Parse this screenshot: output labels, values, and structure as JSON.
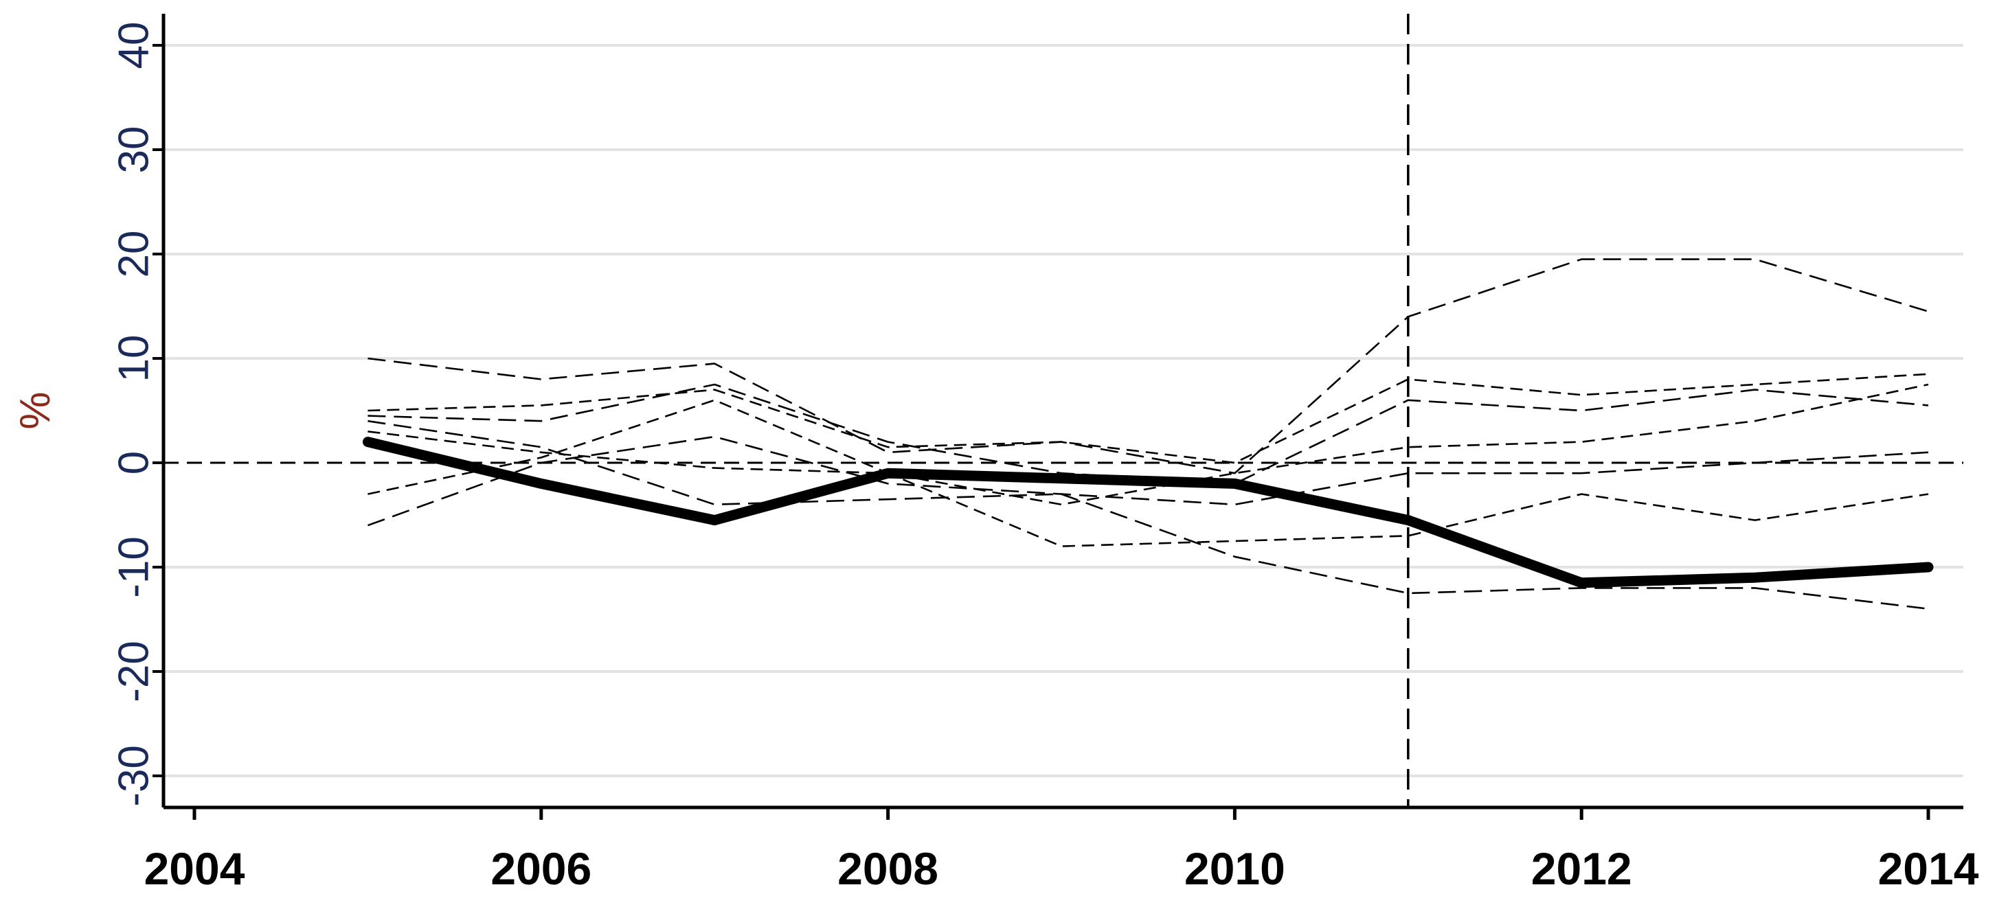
{
  "chart_data": {
    "type": "line",
    "title": "",
    "xlabel": "",
    "ylabel": "%",
    "xlim": [
      2004,
      2014
    ],
    "ylim": [
      -33,
      42
    ],
    "x_ticks": [
      2004,
      2006,
      2008,
      2010,
      2012,
      2014
    ],
    "y_ticks": [
      -30,
      -20,
      -10,
      0,
      10,
      20,
      30,
      40
    ],
    "grid": "horizontal",
    "reference_lines": {
      "horizontal_y": 0,
      "vertical_x": 2011
    },
    "x": [
      2005,
      2006,
      2007,
      2008,
      2009,
      2010,
      2011,
      2012,
      2013,
      2014
    ],
    "series": [
      {
        "style": "solid-bold",
        "values": [
          2,
          -2,
          -5.5,
          -1,
          -1.5,
          -2,
          -5.5,
          -11.5,
          -11,
          -10
        ]
      },
      {
        "style": "dashed",
        "values": [
          10,
          8,
          9.5,
          1,
          2,
          -1,
          14,
          19.5,
          19.5,
          14.5
        ]
      },
      {
        "style": "dashed",
        "values": [
          5,
          5.5,
          7,
          1.5,
          2,
          0,
          8,
          6.5,
          7.5,
          8.5
        ]
      },
      {
        "style": "dashed",
        "values": [
          4.5,
          4,
          7.5,
          2,
          -1,
          -2,
          6,
          5,
          7,
          5.5
        ]
      },
      {
        "style": "dashed",
        "values": [
          -3,
          0.5,
          6,
          -1,
          -4,
          -1,
          1.5,
          2,
          4,
          7.5
        ]
      },
      {
        "style": "dashed",
        "values": [
          -6,
          0,
          2.5,
          -2,
          -3,
          -4,
          -1,
          -1,
          0,
          1
        ]
      },
      {
        "style": "dashed",
        "values": [
          3,
          1,
          -0.5,
          -1,
          -8,
          -7.5,
          -7,
          -3,
          -5.5,
          -3
        ]
      },
      {
        "style": "dashed",
        "values": [
          4,
          1.5,
          -4,
          -3.5,
          -3,
          -9,
          -12.5,
          -12,
          -12,
          -14
        ]
      }
    ],
    "colors": {
      "lines": "#000000",
      "grid": "#e3e3e3",
      "y_tick_labels": "#1a2a5a",
      "y_label": "#8b2a1a"
    }
  }
}
